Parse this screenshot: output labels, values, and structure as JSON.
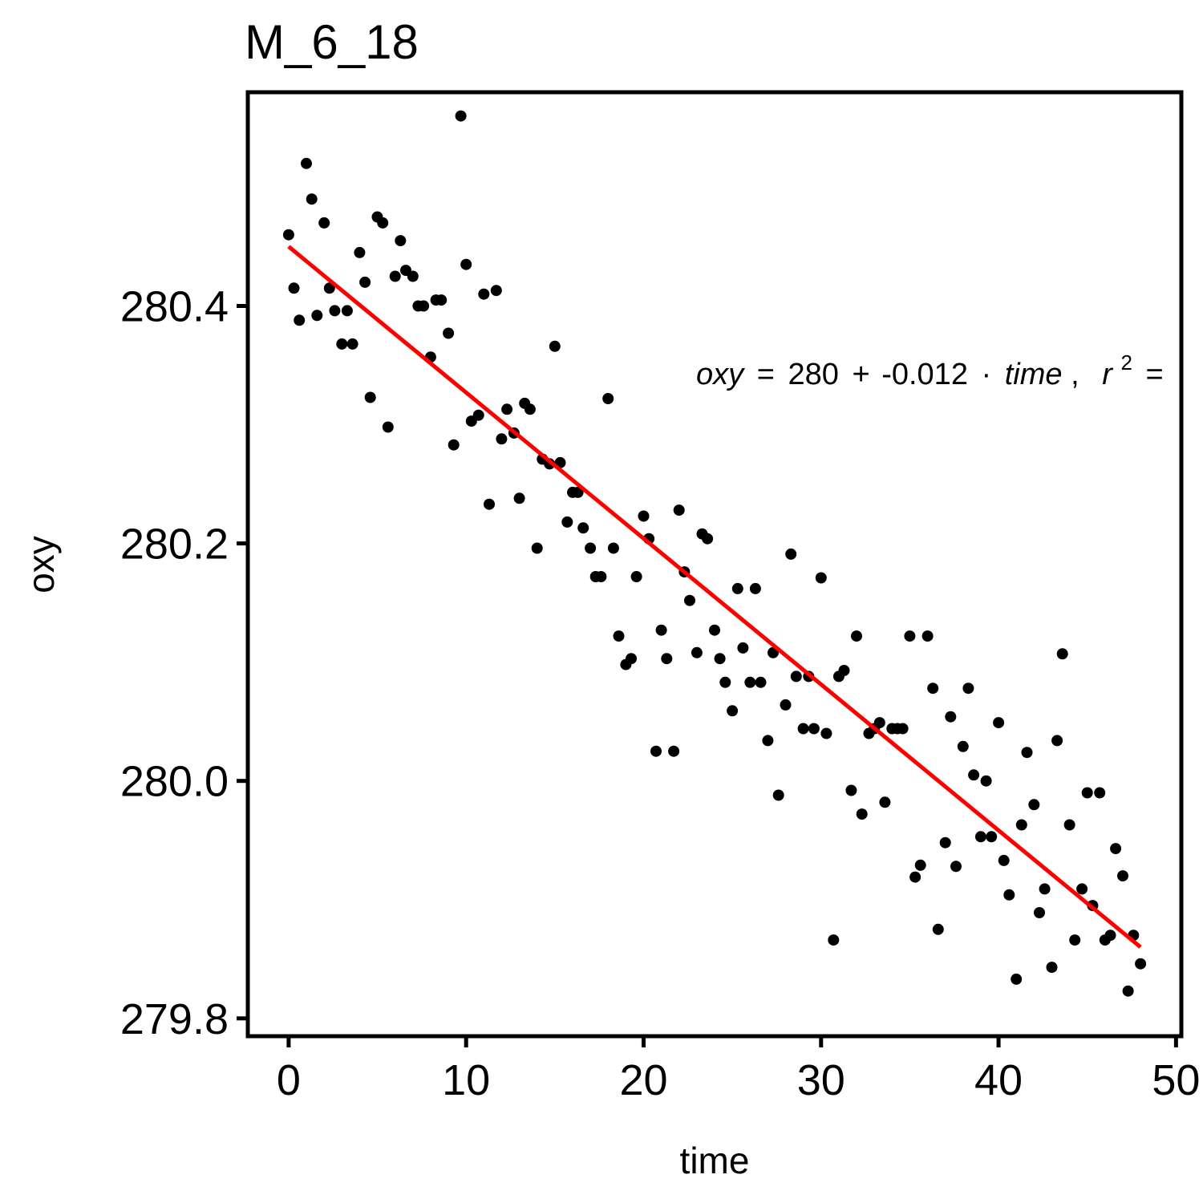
{
  "chart_data": {
    "type": "scatter",
    "title": "M_6_18",
    "xlabel": "time",
    "ylabel": "oxy",
    "xlim": [
      -2.3,
      50.3
    ],
    "ylim": [
      279.785,
      280.58
    ],
    "x_ticks": [
      0,
      10,
      20,
      30,
      40,
      50
    ],
    "x_tick_labels": [
      "0",
      "10",
      "20",
      "30",
      "40",
      "50"
    ],
    "y_ticks": [
      279.8,
      280.0,
      280.2,
      280.4
    ],
    "y_tick_labels": [
      "279.8",
      "280.0",
      "280.2",
      "280.4"
    ],
    "grid": false,
    "point_color": "#000000",
    "fit_color": "#ff0000",
    "fit_line": {
      "x": [
        0,
        48
      ],
      "y": [
        280.45,
        279.86
      ]
    },
    "annotation": {
      "lhs": "oxy",
      "eq": "=",
      "intercept": "280",
      "plus": "+",
      "slope": "-0.012",
      "dot": "·",
      "var": "time",
      "comma": ",",
      "r2": "r",
      "r2_sup": "2",
      "r2_eq": "="
    },
    "points": [
      [
        0.0,
        280.46
      ],
      [
        0.3,
        280.415
      ],
      [
        0.6,
        280.388
      ],
      [
        1.0,
        280.52
      ],
      [
        1.3,
        280.49
      ],
      [
        1.6,
        280.392
      ],
      [
        2.0,
        280.47
      ],
      [
        2.3,
        280.415
      ],
      [
        2.6,
        280.396
      ],
      [
        3.0,
        280.368
      ],
      [
        3.3,
        280.396
      ],
      [
        3.6,
        280.368
      ],
      [
        4.0,
        280.445
      ],
      [
        4.3,
        280.42
      ],
      [
        4.6,
        280.323
      ],
      [
        5.0,
        280.475
      ],
      [
        5.3,
        280.47
      ],
      [
        5.6,
        280.298
      ],
      [
        6.0,
        280.425
      ],
      [
        6.3,
        280.455
      ],
      [
        6.6,
        280.43
      ],
      [
        7.0,
        280.425
      ],
      [
        7.3,
        280.4
      ],
      [
        7.6,
        280.4
      ],
      [
        8.0,
        280.357
      ],
      [
        8.3,
        280.405
      ],
      [
        8.6,
        280.405
      ],
      [
        9.0,
        280.377
      ],
      [
        9.3,
        280.283
      ],
      [
        9.7,
        280.56
      ],
      [
        10.0,
        280.435
      ],
      [
        10.3,
        280.303
      ],
      [
        10.7,
        280.308
      ],
      [
        11.0,
        280.41
      ],
      [
        11.3,
        280.233
      ],
      [
        11.7,
        280.413
      ],
      [
        12.0,
        280.288
      ],
      [
        12.3,
        280.313
      ],
      [
        12.7,
        280.293
      ],
      [
        13.0,
        280.238
      ],
      [
        13.3,
        280.318
      ],
      [
        13.6,
        280.313
      ],
      [
        14.0,
        280.196
      ],
      [
        14.3,
        280.271
      ],
      [
        14.7,
        280.267
      ],
      [
        15.0,
        280.366
      ],
      [
        15.3,
        280.268
      ],
      [
        15.7,
        280.218
      ],
      [
        16.0,
        280.243
      ],
      [
        16.3,
        280.243
      ],
      [
        16.6,
        280.213
      ],
      [
        17.0,
        280.196
      ],
      [
        17.3,
        280.172
      ],
      [
        17.6,
        280.172
      ],
      [
        18.0,
        280.322
      ],
      [
        18.3,
        280.196
      ],
      [
        18.6,
        280.122
      ],
      [
        19.0,
        280.098
      ],
      [
        19.3,
        280.103
      ],
      [
        19.6,
        280.172
      ],
      [
        20.0,
        280.223
      ],
      [
        20.3,
        280.204
      ],
      [
        20.7,
        280.025
      ],
      [
        21.0,
        280.127
      ],
      [
        21.3,
        280.103
      ],
      [
        21.7,
        280.025
      ],
      [
        22.0,
        280.228
      ],
      [
        22.3,
        280.176
      ],
      [
        22.6,
        280.152
      ],
      [
        23.0,
        280.108
      ],
      [
        23.3,
        280.208
      ],
      [
        23.6,
        280.204
      ],
      [
        24.0,
        280.127
      ],
      [
        24.3,
        280.103
      ],
      [
        24.6,
        280.083
      ],
      [
        25.0,
        280.059
      ],
      [
        25.3,
        280.162
      ],
      [
        25.6,
        280.112
      ],
      [
        26.0,
        280.083
      ],
      [
        26.3,
        280.162
      ],
      [
        26.6,
        280.083
      ],
      [
        27.0,
        280.034
      ],
      [
        27.3,
        280.108
      ],
      [
        27.6,
        279.988
      ],
      [
        28.0,
        280.064
      ],
      [
        28.3,
        280.191
      ],
      [
        28.6,
        280.088
      ],
      [
        29.0,
        280.044
      ],
      [
        29.3,
        280.088
      ],
      [
        29.6,
        280.044
      ],
      [
        30.0,
        280.171
      ],
      [
        30.3,
        280.04
      ],
      [
        30.7,
        279.866
      ],
      [
        31.0,
        280.088
      ],
      [
        31.3,
        280.093
      ],
      [
        31.7,
        279.992
      ],
      [
        32.0,
        280.122
      ],
      [
        32.3,
        279.972
      ],
      [
        32.7,
        280.04
      ],
      [
        33.0,
        280.044
      ],
      [
        33.3,
        280.049
      ],
      [
        33.6,
        279.982
      ],
      [
        34.0,
        280.044
      ],
      [
        34.3,
        280.044
      ],
      [
        34.6,
        280.044
      ],
      [
        35.0,
        280.122
      ],
      [
        35.3,
        279.919
      ],
      [
        35.6,
        279.929
      ],
      [
        36.0,
        280.122
      ],
      [
        36.3,
        280.078
      ],
      [
        36.6,
        279.875
      ],
      [
        37.0,
        279.948
      ],
      [
        37.3,
        280.054
      ],
      [
        37.6,
        279.928
      ],
      [
        38.0,
        280.029
      ],
      [
        38.3,
        280.078
      ],
      [
        38.6,
        280.005
      ],
      [
        39.0,
        279.953
      ],
      [
        39.3,
        280.0
      ],
      [
        39.6,
        279.953
      ],
      [
        40.0,
        280.049
      ],
      [
        40.3,
        279.933
      ],
      [
        40.6,
        279.904
      ],
      [
        41.0,
        279.833
      ],
      [
        41.3,
        279.963
      ],
      [
        41.6,
        280.024
      ],
      [
        42.0,
        279.98
      ],
      [
        42.3,
        279.889
      ],
      [
        42.6,
        279.909
      ],
      [
        43.0,
        279.843
      ],
      [
        43.3,
        280.034
      ],
      [
        43.6,
        280.107
      ],
      [
        44.0,
        279.963
      ],
      [
        44.3,
        279.866
      ],
      [
        44.7,
        279.909
      ],
      [
        45.0,
        279.99
      ],
      [
        45.3,
        279.895
      ],
      [
        45.7,
        279.99
      ],
      [
        46.0,
        279.866
      ],
      [
        46.3,
        279.87
      ],
      [
        46.6,
        279.943
      ],
      [
        47.0,
        279.92
      ],
      [
        47.3,
        279.823
      ],
      [
        47.6,
        279.87
      ],
      [
        48.0,
        279.846
      ]
    ]
  }
}
